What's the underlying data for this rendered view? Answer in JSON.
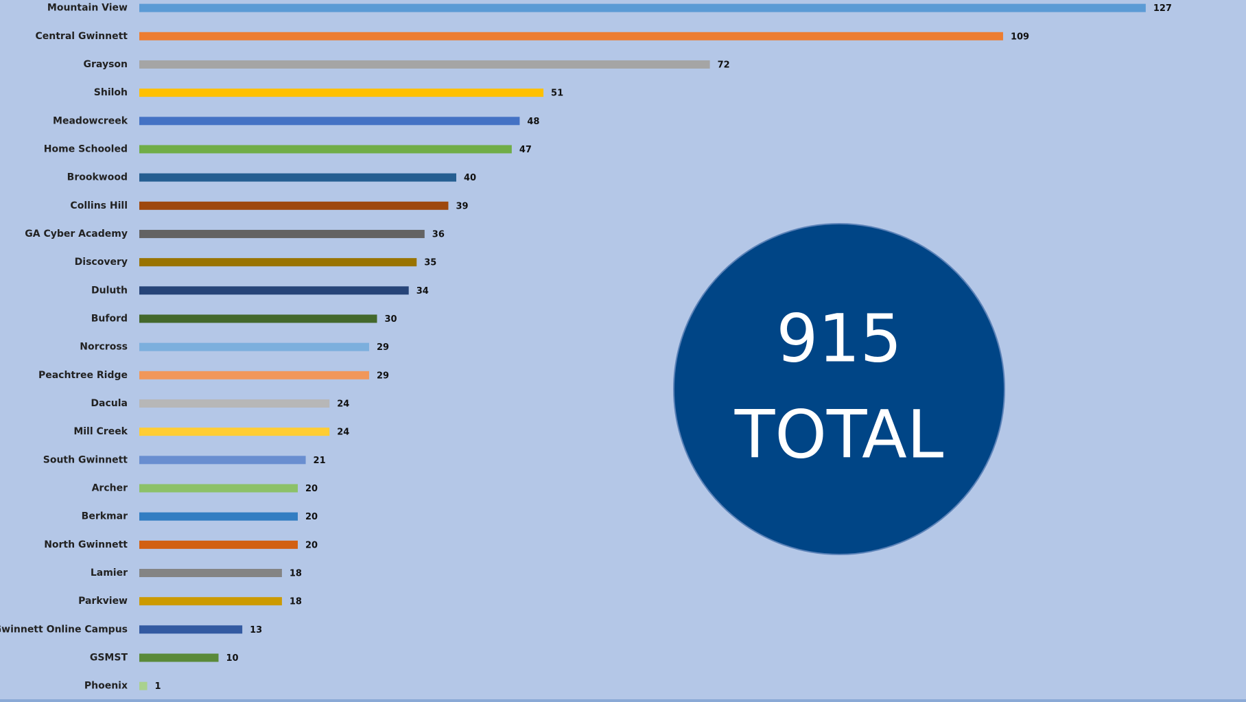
{
  "chart_data": {
    "type": "bar",
    "orientation": "horizontal",
    "categories": [
      "Mountain View",
      "Central Gwinnett",
      "Grayson",
      "Shiloh",
      "Meadowcreek",
      "Home Schooled",
      "Brookwood",
      "Collins Hill",
      "GA Cyber Academy",
      "Discovery",
      "Duluth",
      "Buford",
      "Norcross",
      "Peachtree Ridge",
      "Dacula",
      "Mill Creek",
      "South Gwinnett",
      "Archer",
      "Berkmar",
      "North Gwinnett",
      "Lamier",
      "Parkview",
      "Gwinnett Online Campus",
      "GSMST",
      "Phoenix"
    ],
    "values": [
      127,
      109,
      72,
      51,
      48,
      47,
      40,
      39,
      36,
      35,
      34,
      30,
      29,
      29,
      24,
      24,
      21,
      20,
      20,
      20,
      18,
      18,
      13,
      10,
      1
    ],
    "colors": [
      "#5b9bd5",
      "#ed7d31",
      "#a5a5a5",
      "#ffc000",
      "#4472c4",
      "#70ad47",
      "#255e91",
      "#9e480e",
      "#636363",
      "#997300",
      "#264478",
      "#43682b",
      "#7cafdd",
      "#f1975a",
      "#b7b7b7",
      "#ffcd33",
      "#698ed0",
      "#8cc168",
      "#327dc2",
      "#d26012",
      "#848484",
      "#cc9a00",
      "#335aa1",
      "#5a8a39",
      "#a9d18e"
    ],
    "annotation": {
      "value": 915,
      "label": "TOTAL"
    }
  }
}
